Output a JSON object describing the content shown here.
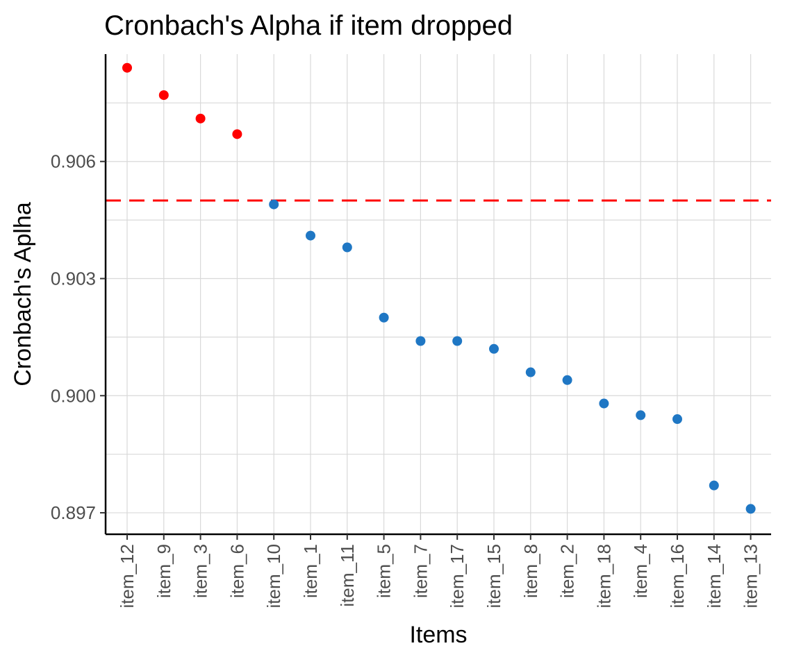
{
  "chart_data": {
    "type": "scatter",
    "title": "Cronbach's Alpha if item dropped",
    "xlabel": "Items",
    "ylabel": "Cronbach's Aplha",
    "categories": [
      "item_12",
      "item_9",
      "item_3",
      "item_6",
      "item_10",
      "item_1",
      "item_11",
      "item_5",
      "item_7",
      "item_17",
      "item_15",
      "item_8",
      "item_2",
      "item_18",
      "item_4",
      "item_16",
      "item_14",
      "item_13"
    ],
    "values": [
      0.9084,
      0.9077,
      0.9071,
      0.9067,
      0.9049,
      0.9041,
      0.9038,
      0.902,
      0.9014,
      0.9014,
      0.9012,
      0.9006,
      0.9004,
      0.8998,
      0.8995,
      0.8994,
      0.8977,
      0.8971
    ],
    "point_colors": [
      "#ff0000",
      "#ff0000",
      "#ff0000",
      "#ff0000",
      "#1f77c4",
      "#1f77c4",
      "#1f77c4",
      "#1f77c4",
      "#1f77c4",
      "#1f77c4",
      "#1f77c4",
      "#1f77c4",
      "#1f77c4",
      "#1f77c4",
      "#1f77c4",
      "#1f77c4",
      "#1f77c4",
      "#1f77c4"
    ],
    "reference_line": {
      "value": 0.905,
      "color": "#ff0000",
      "style": "dashed"
    },
    "yticks": [
      0.897,
      0.9,
      0.903,
      0.906
    ],
    "ytick_labels": [
      "0.897",
      "0.900",
      "0.903",
      "0.906"
    ],
    "ylim": [
      0.89645,
      0.90875
    ],
    "grid": true,
    "legend": "none",
    "colors": {
      "highlight": "#ff0000",
      "normal": "#1f77c4",
      "grid": "#d9d9d9",
      "axis": "#000000"
    }
  }
}
